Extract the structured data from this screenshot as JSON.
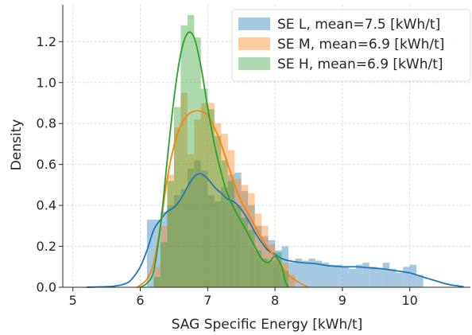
{
  "chart_data": {
    "type": "area",
    "xlabel": "SAG Specific Energy [kWh/t]",
    "ylabel": "Density",
    "xlim": [
      4.85,
      10.9
    ],
    "ylim": [
      0,
      1.38
    ],
    "xticks": [
      5,
      6,
      7,
      8,
      9,
      10
    ],
    "yticks": [
      0.0,
      0.2,
      0.4,
      0.6,
      0.8,
      1.0,
      1.2
    ],
    "grid": true,
    "legend_position": "top-right",
    "bin_width": 0.1,
    "series": [
      {
        "name": "SE L, mean=7.5 [kWh/t]",
        "color": "#1f77b4",
        "hist_start": 6.1,
        "hist": [
          0.33,
          0.33,
          0.37,
          0.4,
          0.45,
          0.48,
          0.58,
          0.62,
          0.57,
          0.45,
          0.42,
          0.49,
          0.55,
          0.56,
          0.47,
          0.4,
          0.3,
          0.25,
          0.23,
          0.18,
          0.2,
          0.12,
          0.14,
          0.13,
          0.14,
          0.13,
          0.12,
          0.11,
          0.11,
          0.1,
          0.09,
          0.11,
          0.12,
          0.1,
          0.09,
          0.12,
          0.09,
          0.07,
          0.1,
          0.11,
          0.06
        ],
        "kde": [
          [
            5.2,
            0.0
          ],
          [
            5.6,
            0.005
          ],
          [
            5.8,
            0.02
          ],
          [
            5.9,
            0.05
          ],
          [
            6.0,
            0.1
          ],
          [
            6.1,
            0.18
          ],
          [
            6.2,
            0.28
          ],
          [
            6.3,
            0.33
          ],
          [
            6.4,
            0.37
          ],
          [
            6.5,
            0.39
          ],
          [
            6.6,
            0.43
          ],
          [
            6.7,
            0.49
          ],
          [
            6.8,
            0.54
          ],
          [
            6.9,
            0.555
          ],
          [
            7.0,
            0.53
          ],
          [
            7.1,
            0.49
          ],
          [
            7.2,
            0.46
          ],
          [
            7.3,
            0.43
          ],
          [
            7.4,
            0.415
          ],
          [
            7.5,
            0.38
          ],
          [
            7.6,
            0.33
          ],
          [
            7.7,
            0.27
          ],
          [
            7.8,
            0.22
          ],
          [
            7.9,
            0.18
          ],
          [
            8.0,
            0.16
          ],
          [
            8.1,
            0.14
          ],
          [
            8.2,
            0.13
          ],
          [
            8.4,
            0.12
          ],
          [
            8.6,
            0.115
          ],
          [
            8.8,
            0.105
          ],
          [
            9.0,
            0.1
          ],
          [
            9.2,
            0.1
          ],
          [
            9.4,
            0.095
          ],
          [
            9.6,
            0.09
          ],
          [
            9.8,
            0.08
          ],
          [
            10.0,
            0.07
          ],
          [
            10.2,
            0.05
          ],
          [
            10.4,
            0.03
          ],
          [
            10.6,
            0.012
          ],
          [
            10.8,
            0.003
          ]
        ]
      },
      {
        "name": "SE M, mean=6.9 [kWh/t]",
        "color": "#ff7f0e",
        "hist_start": 6.2,
        "hist": [
          0.1,
          0.3,
          0.55,
          0.78,
          0.95,
          0.65,
          0.82,
          0.9,
          0.9,
          0.8,
          0.75,
          0.67,
          0.53,
          0.5,
          0.46,
          0.36,
          0.3,
          0.21,
          0.13,
          0.12,
          0.06
        ],
        "kde": [
          [
            5.95,
            0.0
          ],
          [
            6.0,
            0.01
          ],
          [
            6.1,
            0.04
          ],
          [
            6.2,
            0.12
          ],
          [
            6.3,
            0.3
          ],
          [
            6.4,
            0.53
          ],
          [
            6.5,
            0.69
          ],
          [
            6.6,
            0.79
          ],
          [
            6.7,
            0.84
          ],
          [
            6.8,
            0.86
          ],
          [
            6.9,
            0.86
          ],
          [
            7.0,
            0.84
          ],
          [
            7.1,
            0.78
          ],
          [
            7.2,
            0.7
          ],
          [
            7.3,
            0.6
          ],
          [
            7.4,
            0.5
          ],
          [
            7.5,
            0.42
          ],
          [
            7.6,
            0.36
          ],
          [
            7.7,
            0.3
          ],
          [
            7.8,
            0.24
          ],
          [
            7.9,
            0.19
          ],
          [
            8.0,
            0.15
          ],
          [
            8.1,
            0.1
          ],
          [
            8.2,
            0.06
          ],
          [
            8.3,
            0.035
          ],
          [
            8.4,
            0.015
          ],
          [
            8.5,
            0.0
          ]
        ]
      },
      {
        "name": "SE H, mean=6.9 [kWh/t]",
        "color": "#2ca02c",
        "hist_start": 6.2,
        "hist": [
          0.05,
          0.22,
          0.52,
          0.88,
          1.28,
          1.33,
          1.22,
          0.97,
          0.87,
          0.74,
          0.62,
          0.52,
          0.4,
          0.34,
          0.28,
          0.18,
          0.14,
          0.13,
          0.17,
          0.08
        ],
        "kde": [
          [
            6.0,
            0.0
          ],
          [
            6.1,
            0.02
          ],
          [
            6.2,
            0.08
          ],
          [
            6.3,
            0.3
          ],
          [
            6.4,
            0.62
          ],
          [
            6.5,
            0.92
          ],
          [
            6.6,
            1.14
          ],
          [
            6.7,
            1.24
          ],
          [
            6.8,
            1.22
          ],
          [
            6.9,
            1.08
          ],
          [
            7.0,
            0.88
          ],
          [
            7.1,
            0.7
          ],
          [
            7.2,
            0.56
          ],
          [
            7.3,
            0.45
          ],
          [
            7.4,
            0.38
          ],
          [
            7.5,
            0.32
          ],
          [
            7.6,
            0.26
          ],
          [
            7.7,
            0.2
          ],
          [
            7.8,
            0.14
          ],
          [
            7.9,
            0.12
          ],
          [
            8.0,
            0.15
          ],
          [
            8.1,
            0.1
          ],
          [
            8.15,
            0.03
          ],
          [
            8.2,
            0.0
          ]
        ]
      }
    ]
  }
}
